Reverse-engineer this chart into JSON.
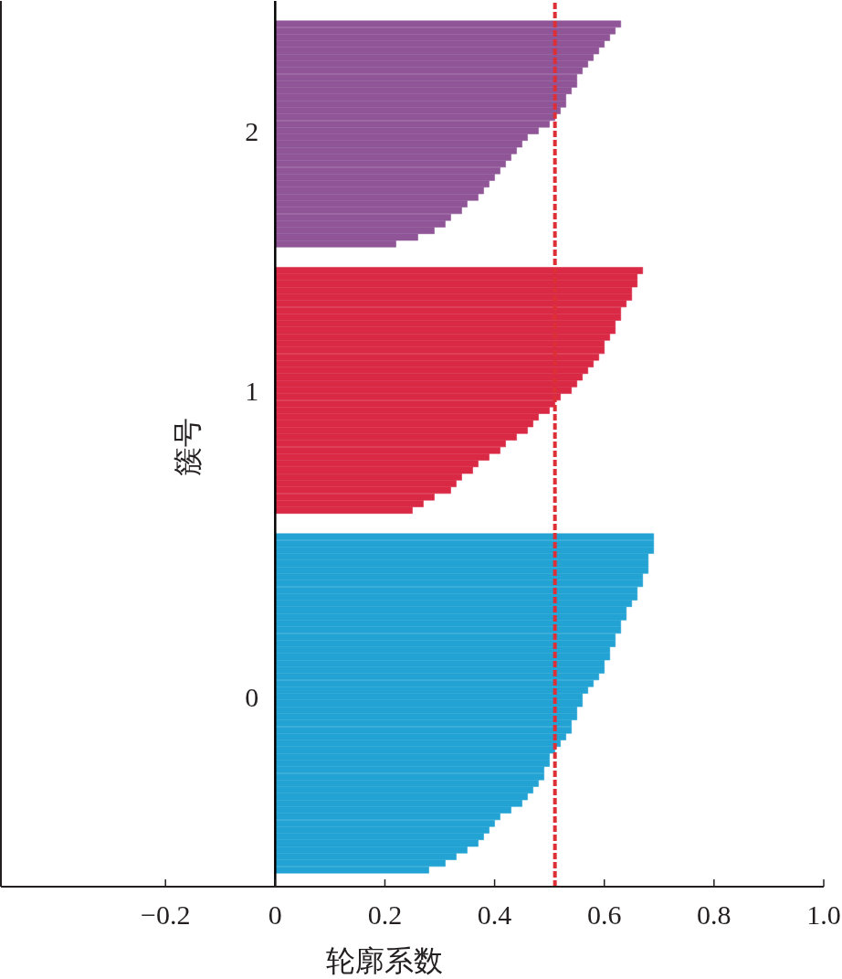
{
  "chart_data": {
    "type": "bar",
    "orientation": "horizontal",
    "xlabel": "轮廓系数",
    "ylabel": "簇号",
    "categories": [
      null,
      null,
      null,
      null,
      null,
      null,
      null,
      null,
      null,
      null,
      null,
      null,
      null,
      null,
      null,
      null,
      null,
      null,
      null,
      "2",
      null,
      null,
      null,
      null,
      null,
      null,
      null,
      null,
      null,
      null,
      null,
      null,
      null,
      null,
      null,
      null,
      null,
      null,
      null,
      null,
      null,
      null,
      null,
      null,
      null,
      null,
      null,
      null,
      null,
      null,
      null,
      null,
      null,
      null,
      null,
      null,
      null,
      null,
      "1",
      null,
      null,
      null,
      null,
      null,
      null,
      null,
      null,
      null,
      null,
      null,
      null,
      null,
      null,
      null,
      null,
      null,
      null,
      null,
      null,
      null,
      null,
      null,
      null,
      null,
      null,
      null,
      null,
      null,
      null,
      null,
      null,
      null,
      null,
      null,
      null,
      null,
      null,
      null,
      null,
      null,
      null,
      null,
      null,
      null,
      "0",
      null,
      null,
      null,
      null,
      null,
      null,
      null,
      null,
      null,
      null,
      null,
      null,
      null,
      null,
      null,
      null,
      null,
      null,
      null,
      null,
      null,
      null,
      null,
      null,
      null,
      null,
      null,
      null
    ],
    "values": [
      null,
      null,
      null,
      0.63,
      0.62,
      0.61,
      0.6,
      0.59,
      0.58,
      0.57,
      0.56,
      0.55,
      0.55,
      0.54,
      0.53,
      0.53,
      0.52,
      0.51,
      0.5,
      0.48,
      0.46,
      0.45,
      0.44,
      0.43,
      0.42,
      0.41,
      0.4,
      0.39,
      0.38,
      0.37,
      0.35,
      0.34,
      0.32,
      0.31,
      0.29,
      0.26,
      0.22,
      null,
      null,
      null,
      0.67,
      0.66,
      0.66,
      0.65,
      0.65,
      0.64,
      0.63,
      0.63,
      0.62,
      0.62,
      0.61,
      0.6,
      0.6,
      0.59,
      0.58,
      0.57,
      0.56,
      0.55,
      0.54,
      0.52,
      0.51,
      0.5,
      0.48,
      0.47,
      0.46,
      0.44,
      0.42,
      0.41,
      0.39,
      0.37,
      0.36,
      0.34,
      0.33,
      0.32,
      0.29,
      0.27,
      0.25,
      null,
      null,
      null,
      0.69,
      0.69,
      0.69,
      0.68,
      0.68,
      0.68,
      0.67,
      0.67,
      0.66,
      0.66,
      0.65,
      0.64,
      0.64,
      0.63,
      0.63,
      0.62,
      0.62,
      0.61,
      0.61,
      0.6,
      0.6,
      0.59,
      0.58,
      0.57,
      0.56,
      0.56,
      0.55,
      0.55,
      0.54,
      0.54,
      0.53,
      0.52,
      0.51,
      0.5,
      0.5,
      0.49,
      0.49,
      0.48,
      0.47,
      0.46,
      0.45,
      0.43,
      0.41,
      0.4,
      0.39,
      0.38,
      0.37,
      0.35,
      0.33,
      0.31,
      0.28,
      null,
      null
    ],
    "colors": [
      null,
      null,
      null,
      "#8f5597",
      "#8f5597",
      "#8f5597",
      "#8f5597",
      "#8f5597",
      "#8f5597",
      "#8f5597",
      "#8f5597",
      "#8f5597",
      "#8f5597",
      "#8f5597",
      "#8f5597",
      "#8f5597",
      "#8f5597",
      "#8f5597",
      "#8f5597",
      "#8f5597",
      "#8f5597",
      "#8f5597",
      "#8f5597",
      "#8f5597",
      "#8f5597",
      "#8f5597",
      "#8f5597",
      "#8f5597",
      "#8f5597",
      "#8f5597",
      "#8f5597",
      "#8f5597",
      "#8f5597",
      "#8f5597",
      "#8f5597",
      "#8f5597",
      "#8f5597",
      null,
      null,
      null,
      "#d92945",
      "#d92945",
      "#d92945",
      "#d92945",
      "#d92945",
      "#d92945",
      "#d92945",
      "#d92945",
      "#d92945",
      "#d92945",
      "#d92945",
      "#d92945",
      "#d92945",
      "#d92945",
      "#d92945",
      "#d92945",
      "#d92945",
      "#d92945",
      "#d92945",
      "#d92945",
      "#d92945",
      "#d92945",
      "#d92945",
      "#d92945",
      "#d92945",
      "#d92945",
      "#d92945",
      "#d92945",
      "#d92945",
      "#d92945",
      "#d92945",
      "#d92945",
      "#d92945",
      "#d92945",
      "#d92945",
      "#d92945",
      "#d92945",
      null,
      null,
      null,
      "#22a3d3",
      "#22a3d3",
      "#22a3d3",
      "#22a3d3",
      "#22a3d3",
      "#22a3d3",
      "#22a3d3",
      "#22a3d3",
      "#22a3d3",
      "#22a3d3",
      "#22a3d3",
      "#22a3d3",
      "#22a3d3",
      "#22a3d3",
      "#22a3d3",
      "#22a3d3",
      "#22a3d3",
      "#22a3d3",
      "#22a3d3",
      "#22a3d3",
      "#22a3d3",
      "#22a3d3",
      "#22a3d3",
      "#22a3d3",
      "#22a3d3",
      "#22a3d3",
      "#22a3d3",
      "#22a3d3",
      "#22a3d3",
      "#22a3d3",
      "#22a3d3",
      "#22a3d3",
      "#22a3d3",
      "#22a3d3",
      "#22a3d3",
      "#22a3d3",
      "#22a3d3",
      "#22a3d3",
      "#22a3d3",
      "#22a3d3",
      "#22a3d3",
      "#22a3d3",
      "#22a3d3",
      "#22a3d3",
      "#22a3d3",
      "#22a3d3",
      "#22a3d3",
      "#22a3d3",
      "#22a3d3",
      "#22a3d3",
      "#22a3d3",
      null,
      null
    ],
    "xlim": [
      -0.5,
      1.0
    ],
    "xticks": [
      {
        "value": -0.2,
        "label": "−0.2"
      },
      0,
      0.2,
      0.4,
      0.6,
      0.8,
      {
        "value": 1.0,
        "label": "1.0"
      }
    ],
    "ref_lines": [
      {
        "axis": "x",
        "value": 0.51,
        "color": "#dc2f36",
        "line_style": "dashed"
      }
    ]
  }
}
